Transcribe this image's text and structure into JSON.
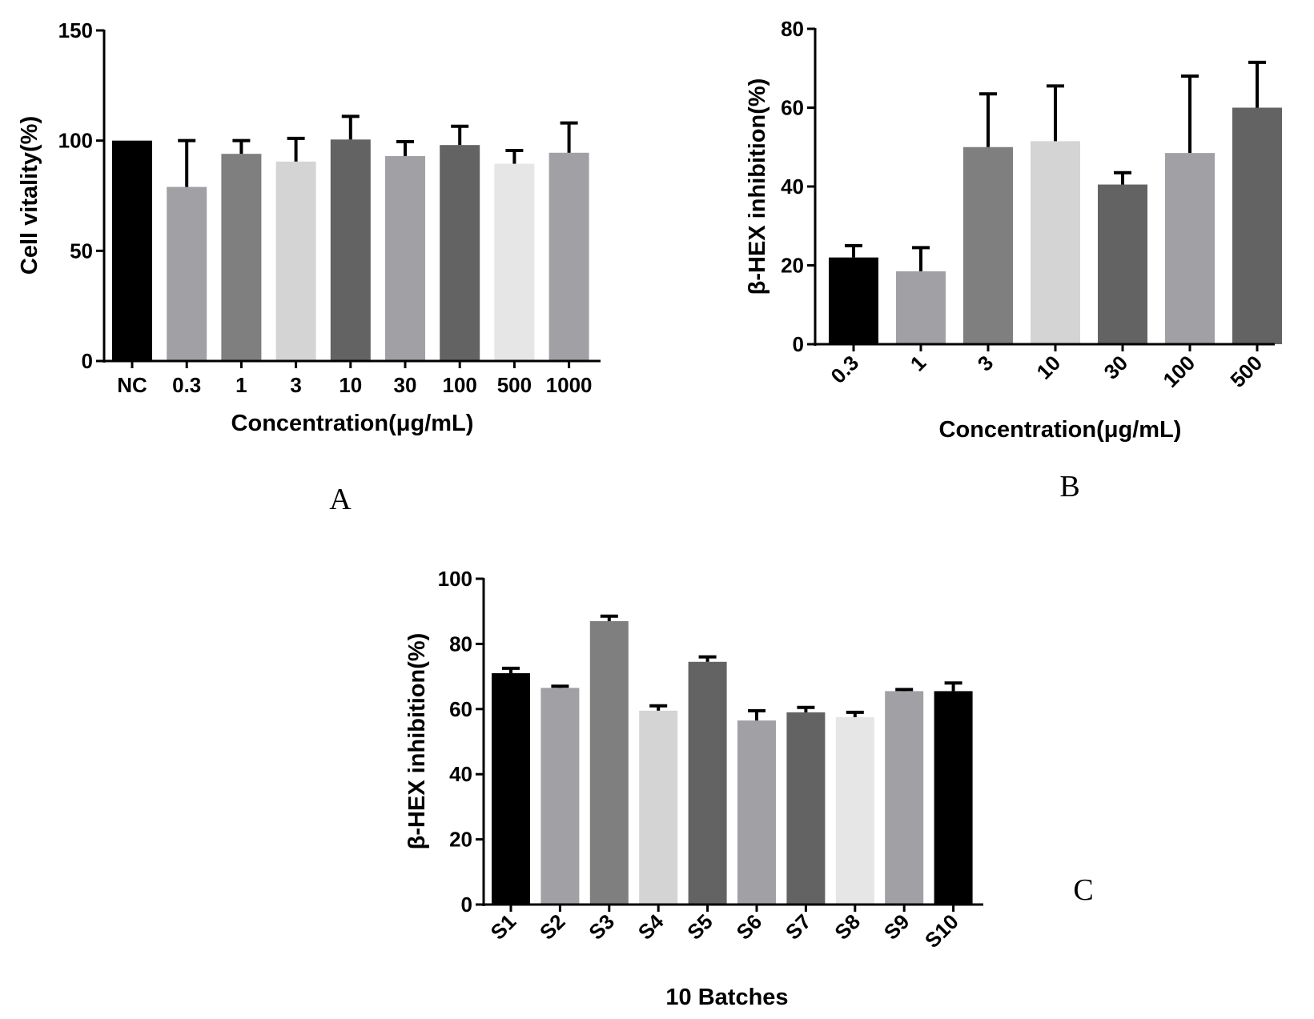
{
  "chart_data": [
    {
      "panel": "A",
      "type": "bar",
      "xlabel": "Concentration(μg/mL)",
      "ylabel": "Cell vitality(%)",
      "ylim": [
        0,
        150
      ],
      "yticks": [
        "0",
        "50",
        "100",
        "150"
      ],
      "categories": [
        "NC",
        "0.3",
        "1",
        "3",
        "10",
        "30",
        "100",
        "500",
        "1000"
      ],
      "values": [
        100,
        79,
        94,
        90.5,
        100.5,
        93,
        98,
        89.5,
        94.5
      ],
      "errors": [
        0,
        21,
        6,
        10.5,
        10.5,
        6.5,
        8.5,
        6,
        13.5
      ],
      "colors": [
        "#000000",
        "#a1a1a5",
        "#7f7f7f",
        "#d4d4d4",
        "#636363",
        "#a1a1a5",
        "#636363",
        "#e6e6e6",
        "#a1a1a5"
      ],
      "rotated_ticks": false
    },
    {
      "panel": "B",
      "type": "bar",
      "xlabel": "Concentration(μg/mL)",
      "ylabel": "β-HEX inhibition(%)",
      "ylim": [
        0,
        80
      ],
      "yticks": [
        "0",
        "20",
        "40",
        "60",
        "80"
      ],
      "categories": [
        "0.3",
        "1",
        "3",
        "10",
        "30",
        "100",
        "500"
      ],
      "values": [
        22,
        18.5,
        50,
        51.5,
        40.5,
        48.5,
        60
      ],
      "errors": [
        3,
        6,
        13.5,
        14,
        3,
        19.5,
        11.5
      ],
      "colors": [
        "#000000",
        "#a1a1a5",
        "#7f7f7f",
        "#d4d4d4",
        "#636363",
        "#a1a1a5",
        "#636363"
      ],
      "rotated_ticks": true
    },
    {
      "panel": "C",
      "type": "bar",
      "xlabel": "10 Batches",
      "ylabel": "β-HEX inhibition(%)",
      "ylim": [
        0,
        100
      ],
      "yticks": [
        "0",
        "20",
        "40",
        "60",
        "80",
        "100"
      ],
      "categories": [
        "S1",
        "S2",
        "S3",
        "S4",
        "S5",
        "S6",
        "S7",
        "S8",
        "S9",
        "S10"
      ],
      "values": [
        71,
        66.5,
        87,
        59.5,
        74.5,
        56.5,
        59,
        57.5,
        65.5,
        65.5
      ],
      "errors": [
        1.5,
        0.5,
        1.5,
        1.5,
        1.5,
        3,
        1.5,
        1.5,
        0.5,
        2.5
      ],
      "colors": [
        "#000000",
        "#a1a1a5",
        "#7f7f7f",
        "#d4d4d4",
        "#636363",
        "#a1a1a5",
        "#636363",
        "#e6e6e6",
        "#a1a1a5",
        "#000000"
      ],
      "rotated_ticks": true
    }
  ]
}
